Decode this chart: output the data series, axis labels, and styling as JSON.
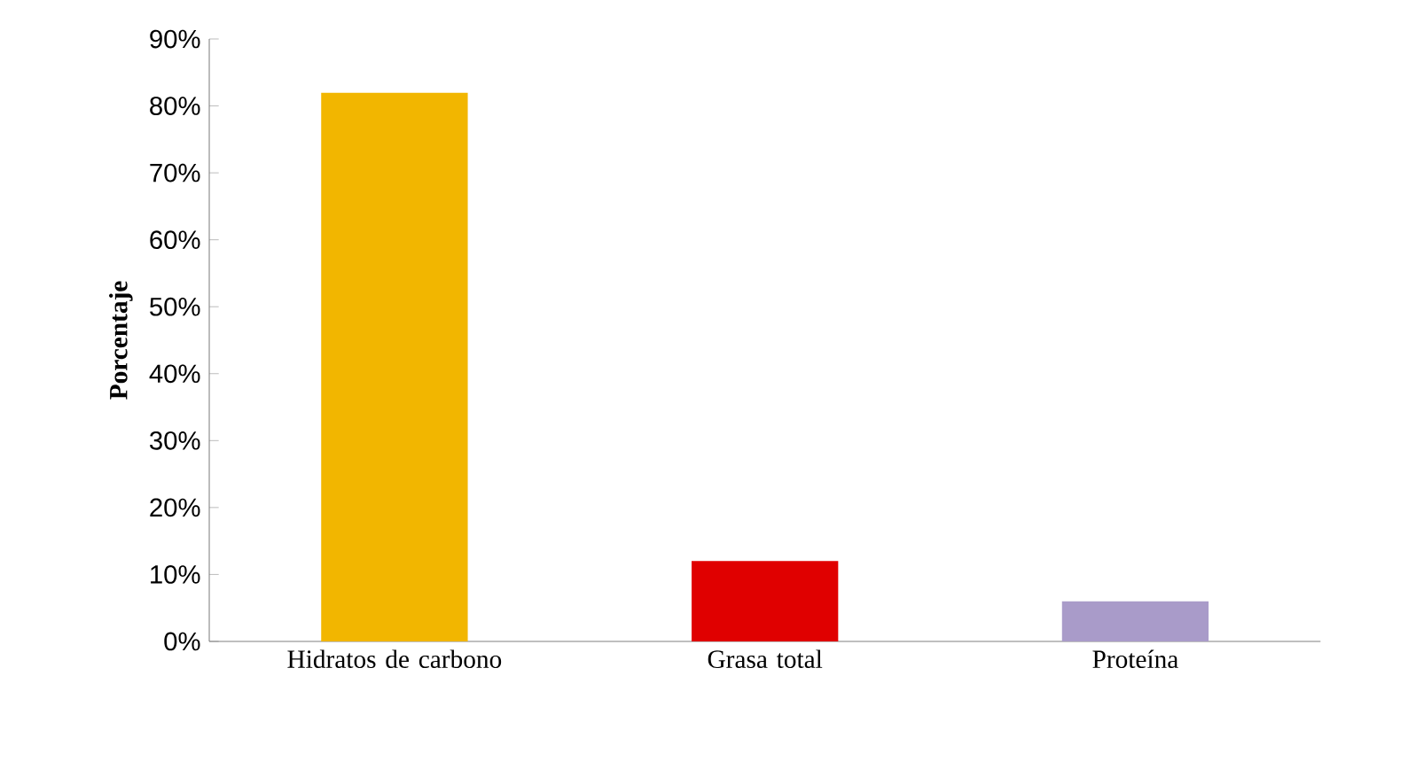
{
  "chart_data": {
    "type": "bar",
    "ylabel": "Porcentaje",
    "categories": [
      "Hidratos de carbono",
      "Grasa total",
      "Proteína"
    ],
    "values": [
      82,
      12,
      6
    ],
    "colors": [
      "#f2b600",
      "#e00000",
      "#a99bc9"
    ],
    "ylim": [
      0,
      90
    ],
    "yticks": [
      {
        "value": 0,
        "label": "0%"
      },
      {
        "value": 10,
        "label": "10%"
      },
      {
        "value": 20,
        "label": "20%"
      },
      {
        "value": 30,
        "label": "30%"
      },
      {
        "value": 40,
        "label": "40%"
      },
      {
        "value": 50,
        "label": "50%"
      },
      {
        "value": 60,
        "label": "60%"
      },
      {
        "value": 70,
        "label": "70%"
      },
      {
        "value": 80,
        "label": "80%"
      },
      {
        "value": 90,
        "label": "90%"
      }
    ],
    "relative": false
  }
}
